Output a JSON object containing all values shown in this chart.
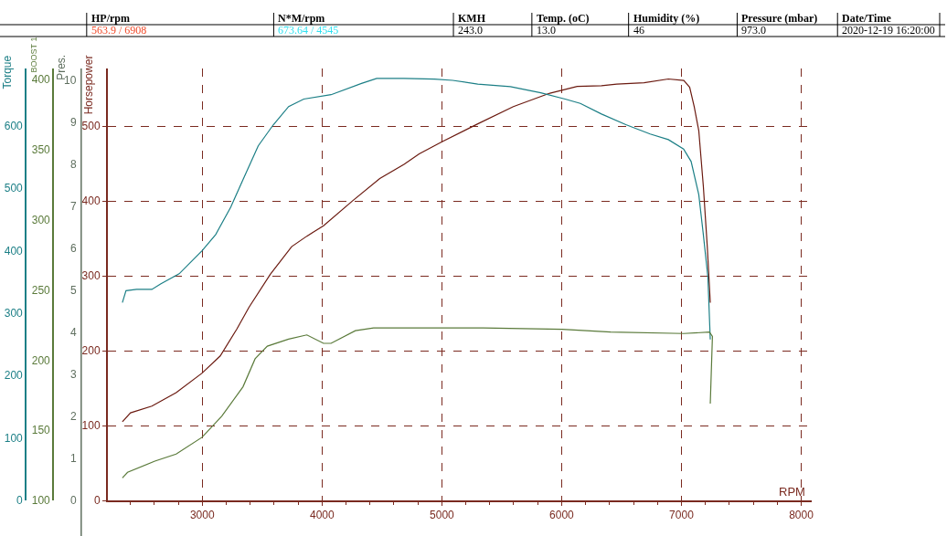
{
  "chart_data": {
    "type": "line",
    "annotations": [
      "HP/rpm",
      "N*M/rpm",
      "KMH",
      "Temp. (oC)",
      "Humidity (%)",
      "Pressure (mbar)",
      "Date/Time",
      "563.9 / 6908",
      "673.64 / 4545",
      "243.0",
      "13.0",
      "46",
      "973.0",
      "2020-12-19 16:20:00",
      "Pres.",
      "0",
      "1",
      "2",
      "3",
      "4",
      "5",
      "6",
      "7",
      "8",
      "9",
      "10"
    ],
    "xlabel": "RPM",
    "ylabel": "Horsepower",
    "y2label": "Torque",
    "y3label": "BOOST 1",
    "xlim": [
      2210,
      8090
    ],
    "xticks": [
      3000,
      4000,
      5000,
      6000,
      7000,
      8000
    ],
    "ylim": [
      0,
      577
    ],
    "yticks": [
      0,
      100,
      200,
      300,
      400,
      500
    ],
    "y2lim": [
      0,
      692
    ],
    "y2ticks": [
      0,
      100,
      200,
      300,
      400,
      500,
      600
    ],
    "y3lim": [
      100,
      408
    ],
    "y3ticks": [
      100,
      150,
      200,
      250,
      300,
      350,
      400
    ],
    "grid": true,
    "line_style": "solid",
    "marker": "none",
    "series": [
      {
        "axis": "y",
        "color": "#6b1a10",
        "x": [
          2333,
          2401,
          2579,
          2782,
          2998,
          3150,
          3289,
          3390,
          3568,
          3746,
          3873,
          4012,
          4253,
          4482,
          4684,
          4811,
          5001,
          5300,
          5597,
          5902,
          6130,
          6333,
          6460,
          6688,
          6891,
          7020,
          7069,
          7107,
          7145,
          7183,
          7216,
          7241
        ],
        "values": [
          105,
          117,
          126,
          144,
          170,
          193,
          229,
          258,
          302,
          339,
          353,
          367,
          400,
          430,
          449,
          463,
          479,
          503,
          526,
          544,
          553,
          554,
          556,
          558,
          563,
          561,
          552,
          526,
          494,
          420,
          339,
          264
        ]
      },
      {
        "axis": "y2",
        "color": "#1c7f86",
        "x": [
          2333,
          2363,
          2452,
          2579,
          2655,
          2807,
          2998,
          3112,
          3238,
          3340,
          3467,
          3594,
          3721,
          3847,
          4075,
          4329,
          4456,
          4684,
          4938,
          5090,
          5300,
          5572,
          5826,
          6029,
          6156,
          6333,
          6536,
          6739,
          6891,
          7018,
          7081,
          7145,
          7183,
          7221,
          7241
        ],
        "values": [
          317,
          336,
          338,
          338,
          347,
          363,
          400,
          426,
          470,
          514,
          568,
          602,
          631,
          643,
          650,
          668,
          676,
          676,
          675,
          673,
          667,
          663,
          653,
          643,
          636,
          619,
          602,
          587,
          578,
          563,
          543,
          490,
          426,
          358,
          258
        ]
      },
      {
        "axis": "y3",
        "color": "#5a7a3a",
        "x": [
          2333,
          2376,
          2604,
          2782,
          2998,
          3162,
          3340,
          3441,
          3543,
          3721,
          3873,
          4012,
          4075,
          4278,
          4430,
          4836,
          5344,
          6004,
          6409,
          7018,
          7234,
          7259,
          7241
        ],
        "values": [
          116,
          120,
          128,
          133,
          145,
          160,
          181,
          201,
          210,
          215,
          218,
          212,
          212,
          221,
          223,
          223,
          223,
          222,
          220,
          219,
          220,
          217,
          169
        ]
      }
    ]
  }
}
